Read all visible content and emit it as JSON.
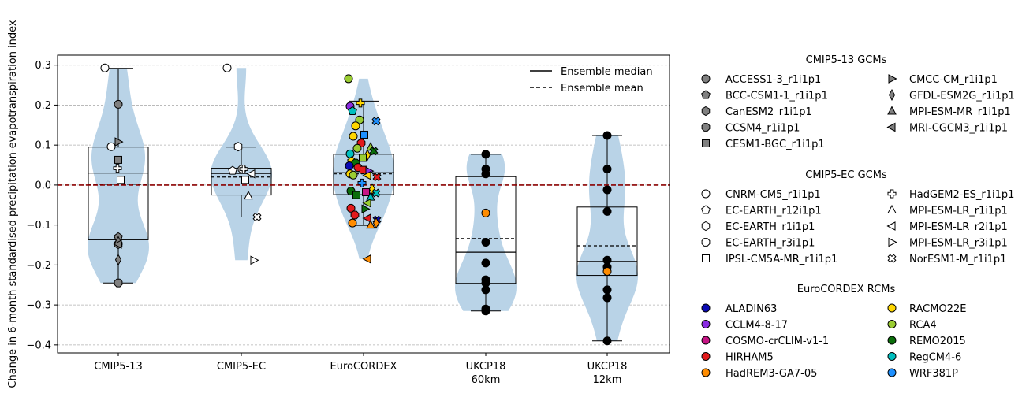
{
  "chart_data": {
    "type": "violin-box-scatter",
    "ylabel": "Change in 6-month standardised precipitation-evapotranspiration index",
    "ylim": [
      -0.42,
      0.325
    ],
    "yticks": [
      0.3,
      0.2,
      0.1,
      0.0,
      -0.1,
      -0.2,
      -0.3,
      -0.4
    ],
    "ytick_labels": [
      "0.3",
      "0.2",
      "0.1",
      "0.0",
      "−0.1",
      "−0.2",
      "−0.3",
      "−0.4"
    ],
    "grid": "horizontal dashed",
    "zero_line_color": "#8b0000",
    "violin_color": "#b9d3e7",
    "categories": [
      {
        "label": "CMIP5-13",
        "label2": "",
        "min": -0.245,
        "q1": -0.137,
        "median": 0.03,
        "mean": 0.002,
        "q3": 0.095,
        "max": 0.292
      },
      {
        "label": "CMIP5-EC",
        "label2": "",
        "min": -0.08,
        "q1": -0.025,
        "median": 0.029,
        "mean": 0.02,
        "q3": 0.042,
        "max": 0.095
      },
      {
        "label": "EuroCORDEX",
        "label2": "",
        "min": -0.101,
        "q1": -0.024,
        "median": 0.031,
        "mean": 0.028,
        "q3": 0.077,
        "max": 0.21
      },
      {
        "label": "UKCP18",
        "label2": "60km",
        "min": -0.315,
        "q1": -0.246,
        "median": -0.168,
        "mean": -0.134,
        "q3": 0.021,
        "max": 0.077
      },
      {
        "label": "UKCP18",
        "label2": "12km",
        "min": -0.39,
        "q1": -0.226,
        "median": -0.191,
        "mean": -0.152,
        "q3": -0.055,
        "max": 0.124
      }
    ],
    "legend": {
      "median_label": "Ensemble median",
      "mean_label": "Ensemble mean",
      "groups": [
        {
          "title": "CMIP5-13 GCMs",
          "items": [
            {
              "label": "ACCESS1-3_r1i1p1",
              "marker": "circle",
              "color": "#808080"
            },
            {
              "label": "BCC-CSM1-1_r1i1p1",
              "marker": "pentagon",
              "color": "#808080"
            },
            {
              "label": "CanESM2_r1i1p1",
              "marker": "hexagon",
              "color": "#808080"
            },
            {
              "label": "CCSM4_r1i1p1",
              "marker": "octagon",
              "color": "#808080"
            },
            {
              "label": "CESM1-BGC_r1i1p1",
              "marker": "square",
              "color": "#808080"
            },
            {
              "label": "CMCC-CM_r1i1p1",
              "marker": "tri-right",
              "color": "#808080"
            },
            {
              "label": "GFDL-ESM2G_r1i1p1",
              "marker": "thin-diamond",
              "color": "#808080"
            },
            {
              "label": "MPI-ESM-MR_r1i1p1",
              "marker": "tri-up",
              "color": "#808080"
            },
            {
              "label": "MRI-CGCM3_r1i1p1",
              "marker": "tri-left",
              "color": "#808080"
            }
          ]
        },
        {
          "title": "CMIP5-EC GCMs",
          "items": [
            {
              "label": "CNRM-CM5_r1i1p1",
              "marker": "circle",
              "color": "#ffffff"
            },
            {
              "label": "EC-EARTH_r12i1p1",
              "marker": "pentagon",
              "color": "#ffffff"
            },
            {
              "label": "EC-EARTH_r1i1p1",
              "marker": "hexagon",
              "color": "#ffffff"
            },
            {
              "label": "EC-EARTH_r3i1p1",
              "marker": "octagon",
              "color": "#ffffff"
            },
            {
              "label": "IPSL-CM5A-MR_r1i1p1",
              "marker": "square",
              "color": "#ffffff"
            },
            {
              "label": "HadGEM2-ES_r1i1p1",
              "marker": "plus",
              "color": "#ffffff"
            },
            {
              "label": "MPI-ESM-LR_r1i1p1",
              "marker": "tri-up",
              "color": "#ffffff"
            },
            {
              "label": "MPI-ESM-LR_r2i1p1",
              "marker": "tri-left",
              "color": "#ffffff"
            },
            {
              "label": "MPI-ESM-LR_r3i1p1",
              "marker": "tri-right",
              "color": "#ffffff"
            },
            {
              "label": "NorESM1-M_r1i1p1",
              "marker": "x",
              "color": "#ffffff"
            }
          ]
        },
        {
          "title": "EuroCORDEX RCMs",
          "items": [
            {
              "label": "ALADIN63",
              "marker": "circle",
              "color": "#0a0ab4"
            },
            {
              "label": "CCLM4-8-17",
              "marker": "circle",
              "color": "#8a2be2"
            },
            {
              "label": "COSMO-crCLIM-v1-1",
              "marker": "circle",
              "color": "#c71585"
            },
            {
              "label": "HIRHAM5",
              "marker": "circle",
              "color": "#e31a1c"
            },
            {
              "label": "HadREM3-GA7-05",
              "marker": "circle",
              "color": "#ff8c00"
            },
            {
              "label": "RACMO22E",
              "marker": "circle",
              "color": "#ffd700"
            },
            {
              "label": "RCA4",
              "marker": "circle",
              "color": "#9acd32"
            },
            {
              "label": "REMO2015",
              "marker": "circle",
              "color": "#0b6e0b"
            },
            {
              "label": "RegCM4-6",
              "marker": "circle",
              "color": "#00bfbf"
            },
            {
              "label": "WRF381P",
              "marker": "circle",
              "color": "#1e90ff"
            }
          ]
        }
      ]
    },
    "points": {
      "CMIP5-13": [
        {
          "y": 0.202,
          "marker": "circle",
          "color": "#808080",
          "j": 0.0
        },
        {
          "y": -0.13,
          "marker": "pentagon",
          "color": "#808080",
          "j": 0.0
        },
        {
          "y": -0.148,
          "marker": "hexagon",
          "color": "#808080",
          "j": 0.0
        },
        {
          "y": -0.245,
          "marker": "octagon",
          "color": "#808080",
          "j": 0.0
        },
        {
          "y": 0.063,
          "marker": "square",
          "color": "#808080",
          "j": 0.0
        },
        {
          "y": 0.108,
          "marker": "tri-right",
          "color": "#808080",
          "j": 0.0
        },
        {
          "y": -0.187,
          "marker": "thin-diamond",
          "color": "#808080",
          "j": 0.0
        },
        {
          "y": -0.14,
          "marker": "tri-up",
          "color": "#808080",
          "j": 0.0
        },
        {
          "y": -0.148,
          "marker": "tri-left",
          "color": "#808080",
          "j": 0.0
        },
        {
          "y": 0.293,
          "marker": "circle",
          "color": "#ffffff",
          "j": -17
        },
        {
          "y": 0.096,
          "marker": "circle",
          "color": "#ffffff",
          "j": -9
        },
        {
          "y": 0.042,
          "marker": "plus",
          "color": "#ffffff",
          "j": -1
        },
        {
          "y": 0.013,
          "marker": "square",
          "color": "#ffffff",
          "j": 3
        }
      ],
      "CMIP5-EC": [
        {
          "y": 0.293,
          "marker": "circle",
          "color": "#ffffff",
          "j": -18
        },
        {
          "y": 0.036,
          "marker": "pentagon",
          "color": "#ffffff",
          "j": -11
        },
        {
          "y": 0.096,
          "marker": "hexagon",
          "color": "#ffffff",
          "j": -4
        },
        {
          "y": 0.04,
          "marker": "octagon",
          "color": "#ffffff",
          "j": 1
        },
        {
          "y": 0.013,
          "marker": "square",
          "color": "#ffffff",
          "j": 5
        },
        {
          "y": 0.04,
          "marker": "plus",
          "color": "#ffffff",
          "j": 3
        },
        {
          "y": -0.027,
          "marker": "tri-up",
          "color": "#ffffff",
          "j": 9
        },
        {
          "y": 0.028,
          "marker": "tri-left",
          "color": "#ffffff",
          "j": 13
        },
        {
          "y": -0.188,
          "marker": "tri-right",
          "color": "#ffffff",
          "j": 16
        },
        {
          "y": -0.08,
          "marker": "x",
          "color": "#ffffff",
          "j": 20
        }
      ],
      "EuroCORDEX": [
        {
          "y": 0.266,
          "marker": "circle",
          "color": "#9acd32",
          "j": -19
        },
        {
          "y": 0.197,
          "marker": "circle",
          "color": "#8a2be2",
          "j": -17
        },
        {
          "y": 0.185,
          "marker": "pentagon",
          "color": "#00bfbf",
          "j": -14
        },
        {
          "y": 0.205,
          "marker": "plus",
          "color": "#ffd700",
          "j": -4
        },
        {
          "y": 0.16,
          "marker": "x",
          "color": "#1e90ff",
          "j": 16
        },
        {
          "y": 0.163,
          "marker": "circle",
          "color": "#9acd32",
          "j": -5
        },
        {
          "y": 0.148,
          "marker": "circle",
          "color": "#ffd700",
          "j": -10
        },
        {
          "y": 0.126,
          "marker": "square",
          "color": "#1e90ff",
          "j": 1
        },
        {
          "y": 0.122,
          "marker": "circle",
          "color": "#ffd700",
          "j": -13
        },
        {
          "y": 0.105,
          "marker": "octagon",
          "color": "#e31a1c",
          "j": -3
        },
        {
          "y": 0.095,
          "marker": "tri-up",
          "color": "#9acd32",
          "j": 9
        },
        {
          "y": 0.092,
          "marker": "circle",
          "color": "#9acd32",
          "j": -8
        },
        {
          "y": 0.085,
          "marker": "x",
          "color": "#0b6e0b",
          "j": 13
        },
        {
          "y": 0.078,
          "marker": "circle",
          "color": "#00bfbf",
          "j": -17
        },
        {
          "y": 0.075,
          "marker": "thin-diamond",
          "color": "#ffd700",
          "j": 5
        },
        {
          "y": 0.068,
          "marker": "square",
          "color": "#9acd32",
          "j": -1
        },
        {
          "y": 0.06,
          "marker": "pentagon",
          "color": "#ffd700",
          "j": -15
        },
        {
          "y": 0.055,
          "marker": "octagon",
          "color": "#0b6e0b",
          "j": -10
        },
        {
          "y": 0.048,
          "marker": "circle",
          "color": "#0a0ab4",
          "j": -18
        },
        {
          "y": 0.044,
          "marker": "circle",
          "color": "#e31a1c",
          "j": -7
        },
        {
          "y": 0.038,
          "marker": "square",
          "color": "#e31a1c",
          "j": 0
        },
        {
          "y": 0.035,
          "marker": "tri-right",
          "color": "#8a2be2",
          "j": 7
        },
        {
          "y": 0.028,
          "marker": "circle",
          "color": "#ffd700",
          "j": -17
        },
        {
          "y": 0.025,
          "marker": "circle",
          "color": "#9acd32",
          "j": -13
        },
        {
          "y": 0.024,
          "marker": "tri-left",
          "color": "#ffd700",
          "j": 5
        },
        {
          "y": 0.02,
          "marker": "x",
          "color": "#e31a1c",
          "j": 17
        },
        {
          "y": 0.005,
          "marker": "plus",
          "color": "#1e90ff",
          "j": -2
        },
        {
          "y": -0.01,
          "marker": "thin-diamond",
          "color": "#ffd700",
          "j": 11
        },
        {
          "y": -0.015,
          "marker": "circle",
          "color": "#0b6e0b",
          "j": -16
        },
        {
          "y": -0.018,
          "marker": "square",
          "color": "#c71585",
          "j": 3
        },
        {
          "y": -0.02,
          "marker": "x",
          "color": "#00bfbf",
          "j": 16
        },
        {
          "y": -0.025,
          "marker": "square",
          "color": "#0b6e0b",
          "j": -9
        },
        {
          "y": -0.03,
          "marker": "tri-up",
          "color": "#00bfbf",
          "j": 9
        },
        {
          "y": -0.045,
          "marker": "tri-left",
          "color": "#9acd32",
          "j": 5
        },
        {
          "y": -0.058,
          "marker": "circle",
          "color": "#e31a1c",
          "j": -16
        },
        {
          "y": -0.06,
          "marker": "tri-right",
          "color": "#0b6e0b",
          "j": 2
        },
        {
          "y": -0.075,
          "marker": "octagon",
          "color": "#e31a1c",
          "j": -11
        },
        {
          "y": -0.083,
          "marker": "tri-left",
          "color": "#e31a1c",
          "j": 5
        },
        {
          "y": -0.087,
          "marker": "x",
          "color": "#0a0ab4",
          "j": 17
        },
        {
          "y": -0.095,
          "marker": "circle",
          "color": "#ff8c00",
          "j": -14
        },
        {
          "y": -0.095,
          "marker": "thin-diamond",
          "color": "#ff8c00",
          "j": 16
        },
        {
          "y": -0.1,
          "marker": "tri-up",
          "color": "#ff8c00",
          "j": 9
        },
        {
          "y": -0.185,
          "marker": "tri-left",
          "color": "#ff8c00",
          "j": 5
        }
      ],
      "UKCP18-60": [
        {
          "y": 0.077,
          "marker": "circle",
          "color": "#000000",
          "j": 0
        },
        {
          "y": 0.04,
          "marker": "circle",
          "color": "#000000",
          "j": 0
        },
        {
          "y": 0.028,
          "marker": "circle",
          "color": "#000000",
          "j": 0
        },
        {
          "y": -0.07,
          "marker": "circle",
          "color": "#ff8c00",
          "j": 0
        },
        {
          "y": -0.143,
          "marker": "circle",
          "color": "#000000",
          "j": 0
        },
        {
          "y": -0.195,
          "marker": "circle",
          "color": "#000000",
          "j": 0
        },
        {
          "y": -0.237,
          "marker": "circle",
          "color": "#000000",
          "j": 0
        },
        {
          "y": -0.245,
          "marker": "circle",
          "color": "#000000",
          "j": 0
        },
        {
          "y": -0.262,
          "marker": "circle",
          "color": "#000000",
          "j": 0
        },
        {
          "y": -0.31,
          "marker": "circle",
          "color": "#000000",
          "j": 0
        },
        {
          "y": -0.315,
          "marker": "circle",
          "color": "#000000",
          "j": 0
        }
      ],
      "UKCP18-12": [
        {
          "y": 0.124,
          "marker": "circle",
          "color": "#000000",
          "j": 0
        },
        {
          "y": 0.04,
          "marker": "circle",
          "color": "#000000",
          "j": 0
        },
        {
          "y": -0.012,
          "marker": "circle",
          "color": "#000000",
          "j": 0
        },
        {
          "y": -0.066,
          "marker": "circle",
          "color": "#000000",
          "j": 0
        },
        {
          "y": -0.188,
          "marker": "circle",
          "color": "#000000",
          "j": 0
        },
        {
          "y": -0.205,
          "marker": "circle",
          "color": "#000000",
          "j": 0
        },
        {
          "y": -0.216,
          "marker": "circle",
          "color": "#ff8c00",
          "j": 0
        },
        {
          "y": -0.262,
          "marker": "circle",
          "color": "#000000",
          "j": 0
        },
        {
          "y": -0.282,
          "marker": "circle",
          "color": "#000000",
          "j": 0
        },
        {
          "y": -0.39,
          "marker": "circle",
          "color": "#000000",
          "j": 0
        }
      ]
    }
  }
}
